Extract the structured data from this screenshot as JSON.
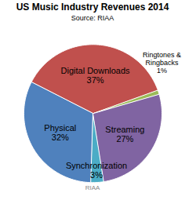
{
  "chart_data": {
    "type": "pie",
    "title": "US Music Industry Revenues 2014",
    "subtitle": "Source: RIAA",
    "caption": "RIAA",
    "categories": [
      "Digital Downloads",
      "Ringtones & Ringbacks",
      "Streaming",
      "Synchronization",
      "Physical"
    ],
    "values": [
      37,
      1,
      27,
      3,
      32
    ],
    "value_labels": [
      "37%",
      "1%",
      "27%",
      "3%",
      "32%"
    ],
    "colors": [
      "#c0504d",
      "#9bbb59",
      "#8064a2",
      "#4bacc6",
      "#4f81bd"
    ],
    "data_labels": true
  }
}
